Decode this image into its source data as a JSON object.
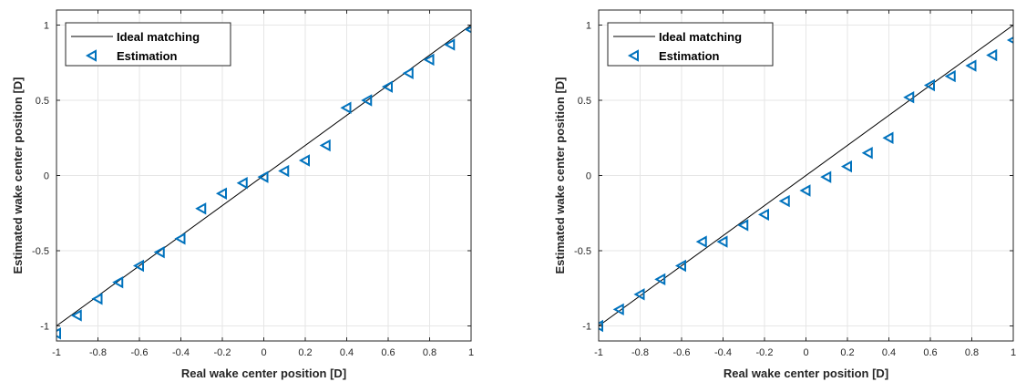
{
  "chart_data": [
    {
      "type": "scatter",
      "xlabel": "Real wake center position [D]",
      "ylabel": "Estimated wake center position [D]",
      "xlim": [
        -1,
        1
      ],
      "ylim": [
        -1.1,
        1.1
      ],
      "xticks": [
        "-1",
        "-0.8",
        "-0.6",
        "-0.4",
        "-0.2",
        "0",
        "0.2",
        "0.4",
        "0.6",
        "0.8",
        "1"
      ],
      "yticks": [
        "-1",
        "-0.5",
        "0",
        "0.5",
        "1"
      ],
      "grid": true,
      "legend_position": "top-left",
      "series": [
        {
          "name": "Ideal matching",
          "kind": "line",
          "color": "#000000",
          "x": [
            -1,
            1
          ],
          "y": [
            -1,
            1
          ]
        },
        {
          "name": "Estimation",
          "kind": "markers",
          "marker": "triangle-left",
          "color": "#0072BD",
          "x": [
            -1,
            -0.9,
            -0.8,
            -0.7,
            -0.6,
            -0.5,
            -0.4,
            -0.3,
            -0.2,
            -0.1,
            0,
            0.1,
            0.2,
            0.3,
            0.4,
            0.5,
            0.6,
            0.7,
            0.8,
            0.9,
            1
          ],
          "y": [
            -1.05,
            -0.93,
            -0.82,
            -0.71,
            -0.6,
            -0.51,
            -0.42,
            -0.22,
            -0.12,
            -0.05,
            -0.01,
            0.03,
            0.1,
            0.2,
            0.45,
            0.5,
            0.59,
            0.68,
            0.77,
            0.87,
            0.97
          ]
        }
      ]
    },
    {
      "type": "scatter",
      "xlabel": "Real wake center position [D]",
      "ylabel": "Estimated wake center position [D]",
      "xlim": [
        -1,
        1
      ],
      "ylim": [
        -1.1,
        1.1
      ],
      "xticks": [
        "-1",
        "-0.8",
        "-0.6",
        "-0.4",
        "-0.2",
        "0",
        "0.2",
        "0.4",
        "0.6",
        "0.8",
        "1"
      ],
      "yticks": [
        "-1",
        "-0.5",
        "0",
        "0.5",
        "1"
      ],
      "grid": true,
      "legend_position": "top-left",
      "series": [
        {
          "name": "Ideal matching",
          "kind": "line",
          "color": "#000000",
          "x": [
            -1,
            1
          ],
          "y": [
            -1,
            1
          ]
        },
        {
          "name": "Estimation",
          "kind": "markers",
          "marker": "triangle-left",
          "color": "#0072BD",
          "x": [
            -1,
            -0.9,
            -0.8,
            -0.7,
            -0.6,
            -0.5,
            -0.4,
            -0.3,
            -0.2,
            -0.1,
            0,
            0.1,
            0.2,
            0.3,
            0.4,
            0.5,
            0.6,
            0.7,
            0.8,
            0.9,
            1
          ],
          "y": [
            -1.0,
            -0.89,
            -0.79,
            -0.69,
            -0.6,
            -0.44,
            -0.44,
            -0.33,
            -0.26,
            -0.17,
            -0.1,
            -0.01,
            0.06,
            0.15,
            0.25,
            0.52,
            0.6,
            0.66,
            0.73,
            0.8,
            0.9
          ]
        }
      ]
    }
  ]
}
